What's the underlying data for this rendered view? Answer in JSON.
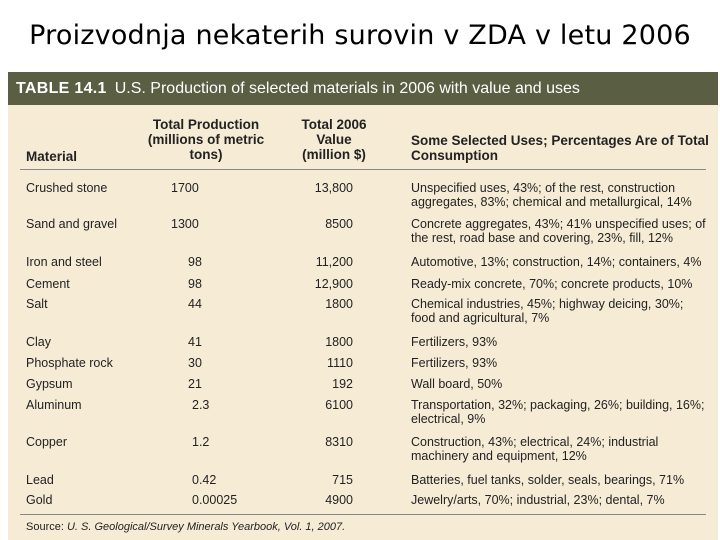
{
  "slide_title": "Proizvodnja nekaterih surovin v ZDA v letu 2006",
  "table": {
    "number": "TABLE 14.1",
    "caption": "U.S. Production of selected materials in 2006 with value and uses",
    "col_material": "Material",
    "col_production": "Total Production (millions of metric tons)",
    "col_value": "Total 2006 Value (million $)",
    "col_uses": "Some Selected Uses; Percentages Are of Total Consumption",
    "rows": [
      {
        "material": "Crushed stone",
        "production": "1700",
        "value": "13,800",
        "uses": "Unspecified uses, 43%; of the rest, construction aggregates, 83%; chemical and metallurgical, 14%"
      },
      {
        "material": "Sand and gravel",
        "production": "1300",
        "value": "8500",
        "uses": "Concrete aggregates, 43%; 41% unspecified uses; of the rest, road base and covering, 23%, fill, 12%"
      },
      {
        "material": "Iron and steel",
        "production": "98",
        "value": "11,200",
        "uses": "Automotive, 13%; construction, 14%; containers, 4%"
      },
      {
        "material": "Cement",
        "production": "98",
        "value": "12,900",
        "uses": "Ready-mix concrete, 70%; concrete products, 10%"
      },
      {
        "material": "Salt",
        "production": "44",
        "value": "1800",
        "uses": "Chemical industries, 45%; highway deicing, 30%; food and agricultural, 7%"
      },
      {
        "material": "Clay",
        "production": "41",
        "value": "1800",
        "uses": "Fertilizers, 93%"
      },
      {
        "material": "Phosphate rock",
        "production": "30",
        "value": "1110",
        "uses": "Fertilizers, 93%"
      },
      {
        "material": "Gypsum",
        "production": "21",
        "value": "192",
        "uses": "Wall board, 50%"
      },
      {
        "material": "Aluminum",
        "production": "2.3",
        "value": "6100",
        "uses": "Transportation, 32%; packaging, 26%; building, 16%; electrical, 9%"
      },
      {
        "material": "Copper",
        "production": "1.2",
        "value": "8310",
        "uses": "Construction, 43%; electrical, 24%; industrial machinery and equipment, 12%"
      },
      {
        "material": "Lead",
        "production": "0.42",
        "value": "715",
        "uses": "Batteries, fuel tanks, solder, seals, bearings, 71%"
      },
      {
        "material": "Gold",
        "production": "0.00025",
        "value": "4900",
        "uses": "Jewelry/arts, 70%; industrial, 23%; dental, 7%"
      }
    ],
    "source_label": "Source:",
    "source_text": "U. S. Geological/Survey Minerals Yearbook, Vol. 1, 2007."
  }
}
